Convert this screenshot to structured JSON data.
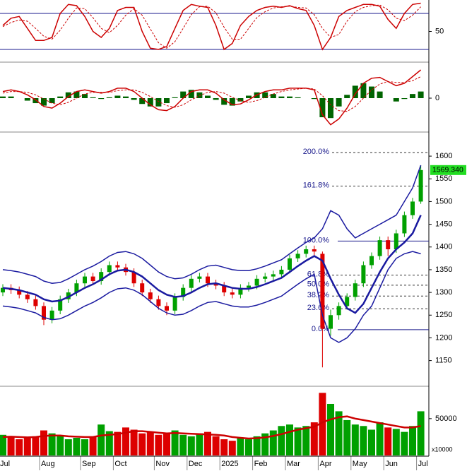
{
  "chart_data": [
    {
      "type": "line",
      "ylim": [
        0,
        100
      ],
      "yticks": [
        50
      ],
      "hlines": [
        20,
        80
      ],
      "hline_color": "#1a1a8c",
      "series": [
        {
          "color": "#cc0000",
          "style": "solid",
          "values": [
            60,
            72,
            75,
            55,
            35,
            35,
            40,
            80,
            95,
            93,
            75,
            50,
            40,
            55,
            85,
            90,
            90,
            50,
            22,
            20,
            25,
            55,
            85,
            95,
            92,
            90,
            60,
            20,
            30,
            60,
            75,
            85,
            90,
            92,
            90,
            93,
            88,
            85,
            60,
            20,
            40,
            75,
            85,
            90,
            95,
            95,
            92,
            70,
            55,
            80,
            95,
            97
          ]
        },
        {
          "color": "#cc0000",
          "style": "dashed",
          "values": [
            58,
            65,
            69,
            67,
            55,
            42,
            37,
            52,
            72,
            89,
            88,
            73,
            55,
            48,
            60,
            77,
            88,
            77,
            54,
            31,
            22,
            33,
            55,
            78,
            91,
            92,
            81,
            57,
            37,
            37,
            55,
            73,
            83,
            89,
            91,
            92,
            90,
            89,
            78,
            55,
            40,
            45,
            67,
            83,
            90,
            93,
            94,
            86,
            72,
            68,
            77,
            91
          ]
        }
      ]
    },
    {
      "type": "line",
      "ylim": [
        -40,
        40
      ],
      "yticks": [
        0
      ],
      "series": [
        {
          "color": "#006400",
          "style": "bar",
          "values": [
            2,
            2,
            0,
            -3,
            -6,
            -9,
            -6,
            2,
            7,
            8,
            5,
            1,
            -1,
            1,
            3,
            2,
            -2,
            -7,
            -10,
            -10,
            -6,
            1,
            8,
            10,
            7,
            3,
            -2,
            -8,
            -9,
            -4,
            3,
            7,
            7,
            5,
            2,
            2,
            1,
            0,
            -1,
            -23,
            -24,
            -10,
            4,
            15,
            18,
            14,
            8,
            0,
            -4,
            -1,
            5,
            8
          ]
        },
        {
          "color": "#cc0000",
          "style": "solid",
          "values": [
            8,
            10,
            8,
            4,
            -2,
            -10,
            -12,
            -6,
            2,
            8,
            10,
            8,
            6,
            8,
            12,
            12,
            8,
            0,
            -8,
            -14,
            -15,
            -10,
            0,
            8,
            10,
            10,
            6,
            -2,
            -8,
            -7,
            -2,
            4,
            8,
            10,
            10,
            12,
            12,
            12,
            10,
            -20,
            -32,
            -25,
            -12,
            5,
            18,
            24,
            25,
            20,
            15,
            18,
            26,
            34
          ]
        },
        {
          "color": "#cc0000",
          "style": "dashed",
          "values": [
            6,
            8,
            8,
            7,
            4,
            -1,
            -6,
            -8,
            -5,
            0,
            5,
            7,
            7,
            7,
            9,
            10,
            10,
            7,
            2,
            -4,
            -9,
            -11,
            -8,
            -2,
            3,
            7,
            8,
            6,
            1,
            -3,
            -5,
            -3,
            1,
            5,
            8,
            10,
            11,
            12,
            11,
            3,
            -8,
            -15,
            -16,
            -10,
            0,
            10,
            17,
            20,
            19,
            19,
            21,
            26
          ]
        }
      ]
    },
    {
      "type": "candlestick",
      "ylim": [
        1095,
        1653
      ],
      "yticks": [
        1150,
        1200,
        1250,
        1300,
        1350,
        1400,
        1450,
        1500,
        1550,
        1600
      ],
      "up_color": "#00a000",
      "down_color": "#dd0000",
      "open": [
        1300,
        1310,
        1305,
        1295,
        1285,
        1270,
        1240,
        1260,
        1285,
        1300,
        1320,
        1335,
        1325,
        1345,
        1360,
        1355,
        1345,
        1320,
        1300,
        1285,
        1270,
        1260,
        1290,
        1310,
        1330,
        1335,
        1320,
        1315,
        1300,
        1295,
        1310,
        1315,
        1330,
        1335,
        1340,
        1350,
        1375,
        1385,
        1395,
        1385,
        1220,
        1250,
        1270,
        1290,
        1320,
        1360,
        1380,
        1415,
        1395,
        1430,
        1470,
        1500
      ],
      "high": [
        1318,
        1318,
        1313,
        1303,
        1293,
        1278,
        1268,
        1293,
        1308,
        1328,
        1343,
        1343,
        1353,
        1368,
        1368,
        1363,
        1353,
        1328,
        1308,
        1293,
        1278,
        1298,
        1318,
        1338,
        1343,
        1343,
        1328,
        1323,
        1308,
        1318,
        1323,
        1338,
        1343,
        1348,
        1358,
        1383,
        1393,
        1403,
        1403,
        1390,
        1262,
        1278,
        1298,
        1328,
        1368,
        1388,
        1423,
        1423,
        1438,
        1478,
        1508,
        1580
      ],
      "low": [
        1292,
        1297,
        1287,
        1277,
        1262,
        1228,
        1232,
        1252,
        1277,
        1292,
        1312,
        1317,
        1317,
        1337,
        1347,
        1337,
        1312,
        1292,
        1277,
        1262,
        1250,
        1252,
        1282,
        1302,
        1322,
        1312,
        1307,
        1292,
        1287,
        1287,
        1302,
        1307,
        1322,
        1327,
        1332,
        1342,
        1367,
        1377,
        1382,
        1135,
        1205,
        1240,
        1262,
        1282,
        1312,
        1352,
        1372,
        1380,
        1387,
        1422,
        1462,
        1495
      ],
      "close": [
        1310,
        1305,
        1295,
        1285,
        1270,
        1240,
        1260,
        1285,
        1300,
        1320,
        1335,
        1325,
        1345,
        1360,
        1355,
        1345,
        1320,
        1300,
        1285,
        1270,
        1260,
        1290,
        1310,
        1330,
        1335,
        1320,
        1315,
        1300,
        1295,
        1310,
        1315,
        1330,
        1335,
        1340,
        1350,
        1375,
        1385,
        1395,
        1390,
        1220,
        1250,
        1270,
        1290,
        1320,
        1360,
        1380,
        1415,
        1395,
        1430,
        1470,
        1500,
        1569.34
      ],
      "last_value_label": "1569.340",
      "label_color": "#22dd22",
      "series": [
        {
          "color": "#1a1aa0",
          "style": "thick",
          "values": [
            1310,
            1308,
            1305,
            1300,
            1295,
            1285,
            1280,
            1282,
            1290,
            1300,
            1310,
            1318,
            1328,
            1340,
            1348,
            1350,
            1345,
            1335,
            1320,
            1305,
            1295,
            1290,
            1292,
            1300,
            1310,
            1318,
            1320,
            1315,
            1310,
            1308,
            1308,
            1312,
            1318,
            1325,
            1332,
            1345,
            1358,
            1370,
            1380,
            1370,
            1330,
            1295,
            1265,
            1255,
            1275,
            1310,
            1345,
            1375,
            1395,
            1410,
            1430,
            1470
          ]
        },
        {
          "color": "#1a1aa0",
          "style": "solid",
          "values": [
            1350,
            1348,
            1345,
            1340,
            1335,
            1325,
            1320,
            1322,
            1330,
            1340,
            1350,
            1358,
            1368,
            1380,
            1388,
            1390,
            1385,
            1375,
            1360,
            1345,
            1335,
            1330,
            1332,
            1340,
            1350,
            1358,
            1360,
            1355,
            1350,
            1348,
            1348,
            1352,
            1358,
            1365,
            1372,
            1385,
            1398,
            1410,
            1420,
            1440,
            1480,
            1470,
            1440,
            1420,
            1430,
            1440,
            1450,
            1460,
            1470,
            1500,
            1530,
            1580
          ]
        },
        {
          "color": "#1a1aa0",
          "style": "solid",
          "values": [
            1270,
            1268,
            1265,
            1260,
            1255,
            1245,
            1240,
            1242,
            1250,
            1260,
            1270,
            1278,
            1288,
            1300,
            1308,
            1310,
            1305,
            1295,
            1280,
            1265,
            1255,
            1250,
            1252,
            1260,
            1270,
            1278,
            1280,
            1275,
            1270,
            1268,
            1268,
            1272,
            1278,
            1285,
            1292,
            1305,
            1318,
            1330,
            1340,
            1250,
            1200,
            1190,
            1200,
            1220,
            1250,
            1270,
            1310,
            1350,
            1375,
            1385,
            1390,
            1385
          ]
        }
      ],
      "fib_color": "#1a1a8c",
      "fib": [
        {
          "label": "200.0%",
          "value": 1608
        },
        {
          "label": "161.8%",
          "value": 1534
        },
        {
          "label": "100.0%",
          "value": 1413
        },
        {
          "label": "61.8%",
          "value": 1338
        },
        {
          "label": "50.0%",
          "value": 1316
        },
        {
          "label": "38.2%",
          "value": 1292
        },
        {
          "label": "23.6%",
          "value": 1264
        },
        {
          "label": "0.0%",
          "value": 1218
        }
      ]
    },
    {
      "type": "bar",
      "ylim": [
        0,
        93000
      ],
      "yticks": [
        50000
      ],
      "multiplier_label": "x10000",
      "up_color": "#00a000",
      "down_color": "#dd0000",
      "line_color": "#cc0000",
      "categories": [
        "Jul",
        null,
        null,
        null,
        null,
        "Aug",
        null,
        null,
        null,
        null,
        "Sep",
        null,
        null,
        null,
        "Oct",
        null,
        null,
        null,
        null,
        "Nov",
        null,
        null,
        null,
        "Dec",
        null,
        null,
        null,
        "2025",
        null,
        null,
        null,
        "Feb",
        null,
        null,
        null,
        "Mar",
        null,
        null,
        null,
        "Apr",
        null,
        null,
        null,
        "May",
        null,
        null,
        null,
        "Jun",
        null,
        null,
        null,
        "Jul"
      ],
      "values": [
        28000,
        25000,
        22000,
        24000,
        26000,
        34000,
        30000,
        26000,
        22000,
        24000,
        22000,
        25000,
        42000,
        33000,
        32000,
        38000,
        35000,
        30000,
        32000,
        28000,
        30000,
        34000,
        28000,
        26000,
        30000,
        32000,
        26000,
        22000,
        20000,
        24000,
        22000,
        26000,
        30000,
        34000,
        40000,
        42000,
        38000,
        40000,
        45000,
        85000,
        70000,
        60000,
        48000,
        42000,
        40000,
        35000,
        45000,
        38000,
        36000,
        32000,
        40000,
        60000
      ],
      "average": [
        25000,
        25500,
        25000,
        24500,
        25000,
        26500,
        27000,
        27000,
        26000,
        25500,
        25000,
        25000,
        27000,
        28000,
        29000,
        31000,
        33000,
        33000,
        32000,
        31000,
        30000,
        30500,
        30000,
        29500,
        29000,
        28500,
        28000,
        27000,
        25000,
        24000,
        23000,
        23500,
        24500,
        26500,
        29000,
        32000,
        35000,
        37000,
        39000,
        45000,
        49000,
        52000,
        53000,
        50000,
        48000,
        46000,
        44000,
        42000,
        40000,
        38000,
        38000,
        40000
      ]
    }
  ]
}
